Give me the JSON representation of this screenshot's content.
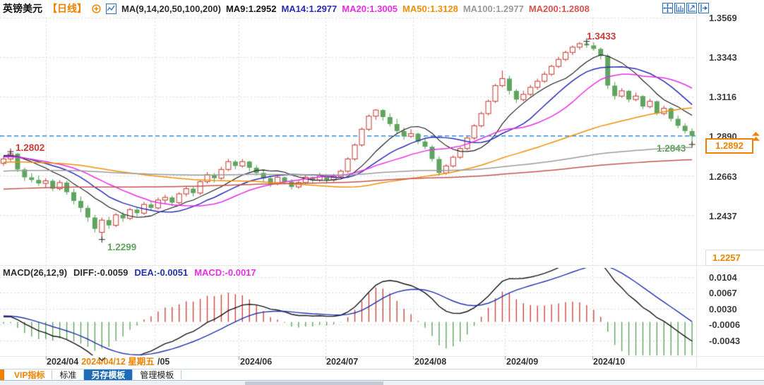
{
  "header": {
    "symbol": "英镑美元",
    "period": "【日线】",
    "ma_group_label": "MA(9,14,20,50,100,200)",
    "ma_values": [
      {
        "label": "MA9:1.2952"
      },
      {
        "label": "MA14:1.2977"
      },
      {
        "label": "MA20:1.3005"
      },
      {
        "label": "MA50:1.3128"
      },
      {
        "label": "MA100:1.2977"
      },
      {
        "label": "MA200:1.2808"
      }
    ]
  },
  "toolbar_icons": [
    "pan-tool",
    "axis-scale",
    "zoom-fit",
    "collapse-right"
  ],
  "macd_header": {
    "params": "MACD(26,12,9)",
    "diff": "DIFF:-0.0059",
    "dea": "DEA:-0.0051",
    "macd": "MACD:-0.0017"
  },
  "tabs": {
    "items": [
      {
        "label": "VIP指标",
        "selected": false
      },
      {
        "label": "标准",
        "selected": false
      },
      {
        "label": "另存模板",
        "selected": true
      },
      {
        "label": "管理模板",
        "selected": false
      }
    ]
  },
  "colors": {
    "up": "#c9463f",
    "down": "#5fa45f",
    "ma": [
      "#151515",
      "#2b2bb4",
      "#e62ee6",
      "#f0900a",
      "#9b9b9b",
      "#c0564e"
    ],
    "diff_line": "#151515",
    "dea_line": "#2233aa",
    "grid": "#d6d6d6",
    "price_line": "#2f8ee0",
    "accent_orange": "#f08200",
    "tab_selected_bg": "#1f6bb8",
    "swing_high": "#cc3b36",
    "swing_low": "#64a364",
    "axis_text": "#3c3c3c"
  },
  "chart_data": {
    "type": "candlestick+macd",
    "title": "英镑美元 日线 (GBP/USD daily)",
    "legend_position": "top-left",
    "grid": "dotted",
    "ma_periods": [
      9,
      14,
      20,
      50,
      100,
      200
    ],
    "price_axis": {
      "labels": [
        "1.3569",
        "1.3343",
        "1.3116",
        "1.2890",
        "1.2663",
        "1.2437"
      ],
      "min_label": "1.2257",
      "ylim": [
        1.2257,
        1.3569
      ]
    },
    "current_price": "1.2892",
    "macd_axis_labels": [
      "0.0104",
      "0.0067",
      "0.0030",
      "-0.0006",
      "-0.0043"
    ],
    "x_axis": {
      "months": [
        {
          "label": "2024/04",
          "index": 6
        },
        {
          "label": "/05",
          "index": 21.5
        },
        {
          "label": "2024/06",
          "index": 33.5
        },
        {
          "label": "2024/07",
          "index": 45.8
        },
        {
          "label": "2024/08",
          "index": 58.3
        },
        {
          "label": "2024/09",
          "index": 71.4
        },
        {
          "label": "2024/10",
          "index": 83.8
        }
      ]
    },
    "crosshair": {
      "date_label": "2024/04/12 星期五",
      "index": 14
    },
    "swing_marks": [
      {
        "label": "1.2802",
        "price": 1.2802,
        "index": 1,
        "kind": "high"
      },
      {
        "label": "1.2299",
        "price": 1.2299,
        "index": 14,
        "kind": "low"
      },
      {
        "label": "1.3433",
        "price": 1.3433,
        "index": 83,
        "kind": "high"
      },
      {
        "label": "1.2843",
        "price": 1.2843,
        "index": 98,
        "kind": "low"
      }
    ],
    "ma_warmup": {
      "points": 200,
      "start": 1.238,
      "end": 1.279
    },
    "candles": [
      [
        1.2735,
        1.2775,
        1.272,
        1.276
      ],
      [
        1.276,
        1.2802,
        1.2745,
        1.279
      ],
      [
        1.279,
        1.2795,
        1.2685,
        1.27
      ],
      [
        1.27,
        1.271,
        1.2635,
        1.2655
      ],
      [
        1.2655,
        1.268,
        1.2625,
        1.264
      ],
      [
        1.264,
        1.2665,
        1.2605,
        1.262
      ],
      [
        1.262,
        1.265,
        1.2595,
        1.2635
      ],
      [
        1.2635,
        1.2645,
        1.2575,
        1.259
      ],
      [
        1.259,
        1.264,
        1.258,
        1.2625
      ],
      [
        1.2625,
        1.2635,
        1.2555,
        1.257
      ],
      [
        1.257,
        1.259,
        1.25,
        1.252
      ],
      [
        1.252,
        1.2545,
        1.2455,
        1.248
      ],
      [
        1.248,
        1.2495,
        1.24,
        1.2425
      ],
      [
        1.2425,
        1.244,
        1.234,
        1.236
      ],
      [
        1.234,
        1.2425,
        1.2299,
        1.241
      ],
      [
        1.241,
        1.243,
        1.236,
        1.238
      ],
      [
        1.238,
        1.245,
        1.237,
        1.244
      ],
      [
        1.244,
        1.2455,
        1.24,
        1.242
      ],
      [
        1.242,
        1.248,
        1.241,
        1.247
      ],
      [
        1.247,
        1.2485,
        1.243,
        1.245
      ],
      [
        1.245,
        1.2515,
        1.244,
        1.25
      ],
      [
        1.25,
        1.252,
        1.2465,
        1.248
      ],
      [
        1.248,
        1.254,
        1.247,
        1.2525
      ],
      [
        1.2525,
        1.2555,
        1.2505,
        1.254
      ],
      [
        1.254,
        1.255,
        1.249,
        1.251
      ],
      [
        1.251,
        1.257,
        1.25,
        1.256
      ],
      [
        1.256,
        1.2605,
        1.2545,
        1.259
      ],
      [
        1.259,
        1.26,
        1.2545,
        1.2565
      ],
      [
        1.2565,
        1.264,
        1.2555,
        1.263
      ],
      [
        1.263,
        1.2685,
        1.262,
        1.267
      ],
      [
        1.267,
        1.268,
        1.2625,
        1.265
      ],
      [
        1.265,
        1.2715,
        1.264,
        1.27
      ],
      [
        1.27,
        1.276,
        1.269,
        1.2745
      ],
      [
        1.2745,
        1.2755,
        1.27,
        1.272
      ],
      [
        1.272,
        1.276,
        1.271,
        1.2745
      ],
      [
        1.2745,
        1.275,
        1.269,
        1.271
      ],
      [
        1.271,
        1.2725,
        1.2665,
        1.268
      ],
      [
        1.268,
        1.27,
        1.263,
        1.265
      ],
      [
        1.265,
        1.2665,
        1.26,
        1.262
      ],
      [
        1.262,
        1.2665,
        1.261,
        1.2655
      ],
      [
        1.2655,
        1.266,
        1.2615,
        1.263
      ],
      [
        1.263,
        1.2645,
        1.2585,
        1.26
      ],
      [
        1.26,
        1.264,
        1.259,
        1.2625
      ],
      [
        1.2625,
        1.2665,
        1.2615,
        1.2655
      ],
      [
        1.2655,
        1.266,
        1.262,
        1.264
      ],
      [
        1.264,
        1.268,
        1.263,
        1.2665
      ],
      [
        1.2665,
        1.267,
        1.262,
        1.264
      ],
      [
        1.264,
        1.2675,
        1.263,
        1.266
      ],
      [
        1.266,
        1.27,
        1.265,
        1.269
      ],
      [
        1.269,
        1.277,
        1.268,
        1.276
      ],
      [
        1.276,
        1.285,
        1.275,
        1.284
      ],
      [
        1.284,
        1.294,
        1.283,
        1.293
      ],
      [
        1.293,
        1.3015,
        1.292,
        1.3005
      ],
      [
        1.3005,
        1.3045,
        1.2985,
        1.304
      ],
      [
        1.304,
        1.3045,
        1.298,
        1.3
      ],
      [
        1.3,
        1.302,
        1.2945,
        1.296
      ],
      [
        1.296,
        1.299,
        1.2905,
        1.292
      ],
      [
        1.292,
        1.294,
        1.287,
        1.289
      ],
      [
        1.289,
        1.293,
        1.288,
        1.2905
      ],
      [
        1.2905,
        1.291,
        1.2845,
        1.286
      ],
      [
        1.286,
        1.288,
        1.2815,
        1.283
      ],
      [
        1.283,
        1.284,
        1.2745,
        1.276
      ],
      [
        1.276,
        1.2775,
        1.2665,
        1.268
      ],
      [
        1.268,
        1.273,
        1.267,
        1.272
      ],
      [
        1.272,
        1.278,
        1.271,
        1.277
      ],
      [
        1.277,
        1.283,
        1.276,
        1.282
      ],
      [
        1.282,
        1.289,
        1.281,
        1.288
      ],
      [
        1.288,
        1.296,
        1.287,
        1.295
      ],
      [
        1.295,
        1.303,
        1.294,
        1.302
      ],
      [
        1.302,
        1.31,
        1.301,
        1.309
      ],
      [
        1.309,
        1.319,
        1.308,
        1.318
      ],
      [
        1.318,
        1.3266,
        1.317,
        1.322
      ],
      [
        1.322,
        1.3235,
        1.313,
        1.315
      ],
      [
        1.315,
        1.316,
        1.308,
        1.31
      ],
      [
        1.31,
        1.315,
        1.309,
        1.313
      ],
      [
        1.313,
        1.3185,
        1.312,
        1.317
      ],
      [
        1.317,
        1.322,
        1.3155,
        1.3205
      ],
      [
        1.3205,
        1.326,
        1.3195,
        1.3245
      ],
      [
        1.3245,
        1.33,
        1.3235,
        1.329
      ],
      [
        1.329,
        1.3345,
        1.328,
        1.333
      ],
      [
        1.333,
        1.338,
        1.332,
        1.337
      ],
      [
        1.337,
        1.341,
        1.3355,
        1.34
      ],
      [
        1.34,
        1.343,
        1.3385,
        1.342
      ],
      [
        1.342,
        1.3433,
        1.3395,
        1.341
      ],
      [
        1.341,
        1.3428,
        1.338,
        1.339
      ],
      [
        1.339,
        1.34,
        1.333,
        1.335
      ],
      [
        1.335,
        1.336,
        1.316,
        1.318
      ],
      [
        1.318,
        1.32,
        1.31,
        1.312
      ],
      [
        1.312,
        1.3165,
        1.311,
        1.315
      ],
      [
        1.315,
        1.3155,
        1.3085,
        1.31
      ],
      [
        1.31,
        1.314,
        1.309,
        1.312
      ],
      [
        1.312,
        1.3125,
        1.3045,
        1.306
      ],
      [
        1.306,
        1.3105,
        1.305,
        1.309
      ],
      [
        1.309,
        1.3095,
        1.301,
        1.302
      ],
      [
        1.302,
        1.3065,
        1.301,
        1.305
      ],
      [
        1.305,
        1.3055,
        1.2975,
        1.299
      ],
      [
        1.299,
        1.301,
        1.2935,
        1.295
      ],
      [
        1.295,
        1.2965,
        1.2905,
        1.292
      ],
      [
        1.292,
        1.2935,
        1.2843,
        1.2892
      ]
    ]
  }
}
